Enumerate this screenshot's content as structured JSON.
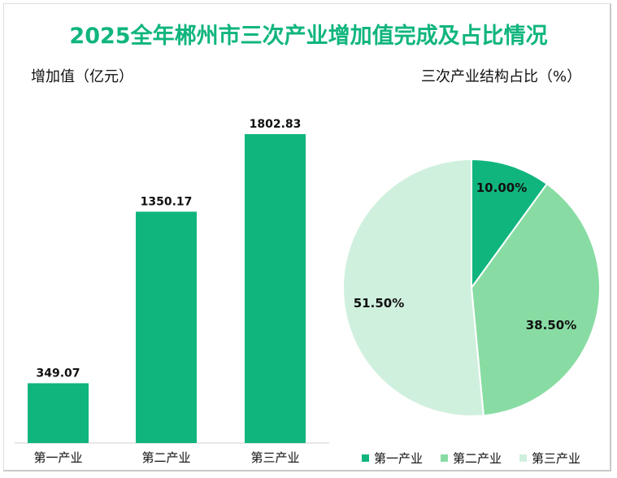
{
  "title": "2025全年郴州市三次产业增加值完成及占比情况",
  "chart_data": [
    {
      "type": "bar",
      "title": "增加值（亿元）",
      "categories": [
        "第一产业",
        "第二产业",
        "第三产业"
      ],
      "values": [
        349.07,
        1350.17,
        1802.83
      ],
      "value_labels": [
        "349.07",
        "1350.17",
        "1802.83"
      ],
      "ylim": [
        0,
        1802.83
      ],
      "color": "#10b57e"
    },
    {
      "type": "pie",
      "title": "三次产业结构占比（%）",
      "categories": [
        "第一产业",
        "第二产业",
        "第三产业"
      ],
      "values": [
        10.0,
        38.5,
        51.5
      ],
      "value_labels": [
        "10.00%",
        "38.50%",
        "51.50%"
      ],
      "colors": [
        "#10b57e",
        "#88dca3",
        "#d0f0de"
      ],
      "legend": "bottom"
    }
  ]
}
